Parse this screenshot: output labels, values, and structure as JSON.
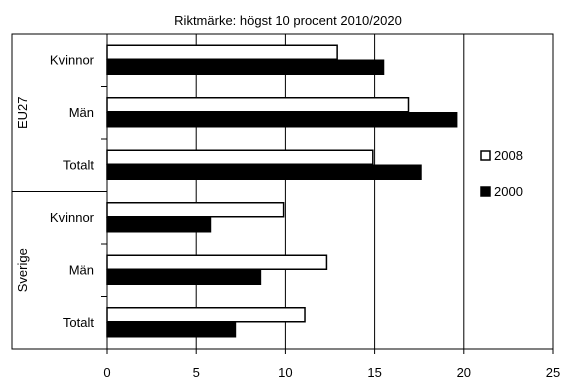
{
  "chart_data": {
    "type": "bar",
    "orientation": "horizontal",
    "title": "Riktmärke: högst 10 procent 2010/2020",
    "groups": [
      {
        "name": "EU27",
        "categories": [
          "Kvinnor",
          "Män",
          "Totalt"
        ]
      },
      {
        "name": "Sverige",
        "categories": [
          "Kvinnor",
          "Män",
          "Totalt"
        ]
      }
    ],
    "categories": [
      "Kvinnor",
      "Män",
      "Totalt",
      "Kvinnor",
      "Män",
      "Totalt"
    ],
    "series": [
      {
        "name": "2008",
        "color": "#ffffff",
        "values": [
          12.9,
          16.9,
          14.9,
          9.9,
          12.3,
          11.1
        ]
      },
      {
        "name": "2000",
        "color": "#000000",
        "values": [
          15.5,
          19.6,
          17.6,
          5.8,
          8.6,
          7.2
        ]
      }
    ],
    "xlim": [
      0,
      25
    ],
    "xticks": [
      0,
      5,
      10,
      15,
      20,
      25
    ],
    "grid": true,
    "legend_position": "right"
  }
}
